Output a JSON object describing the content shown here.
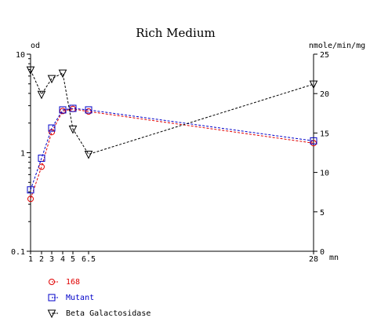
{
  "chart_data": {
    "type": "line",
    "title": "Rich Medium",
    "y_left_label": "od",
    "y_right_label": "nmole/min/mg",
    "x_unit_label": "mn",
    "x_ticks": [
      "1",
      "2",
      "3",
      "4",
      "5",
      "6.5",
      "28"
    ],
    "y_left_scale": "log",
    "y_left_ticks": [
      "0.1",
      "1",
      "10"
    ],
    "y_left_range": [
      0.1,
      10
    ],
    "y_right_ticks": [
      "0",
      "5",
      "10",
      "15",
      "20",
      "25"
    ],
    "y_right_range": [
      0,
      25
    ],
    "grid": false,
    "legend_position": "bottom-left",
    "series": [
      {
        "name": "168",
        "axis": "left",
        "color": "#e00000",
        "marker": "circle",
        "x": [
          1,
          2,
          3,
          4,
          5,
          6.5,
          28
        ],
        "y": [
          0.34,
          0.72,
          1.62,
          2.65,
          2.78,
          2.62,
          1.25
        ]
      },
      {
        "name": "Mutant",
        "axis": "left",
        "color": "#0000c8",
        "marker": "square",
        "x": [
          1,
          2,
          3,
          4,
          5,
          6.5,
          28
        ],
        "y": [
          0.42,
          0.88,
          1.78,
          2.72,
          2.82,
          2.72,
          1.32
        ]
      },
      {
        "name": "Beta Galactosidase",
        "axis": "right",
        "color": "#000000",
        "marker": "triangle-down",
        "x": [
          1,
          2,
          3,
          4,
          5,
          6.5,
          28
        ],
        "y": [
          23,
          19.9,
          21.9,
          22.6,
          15.5,
          12.3,
          21.2
        ]
      }
    ]
  }
}
